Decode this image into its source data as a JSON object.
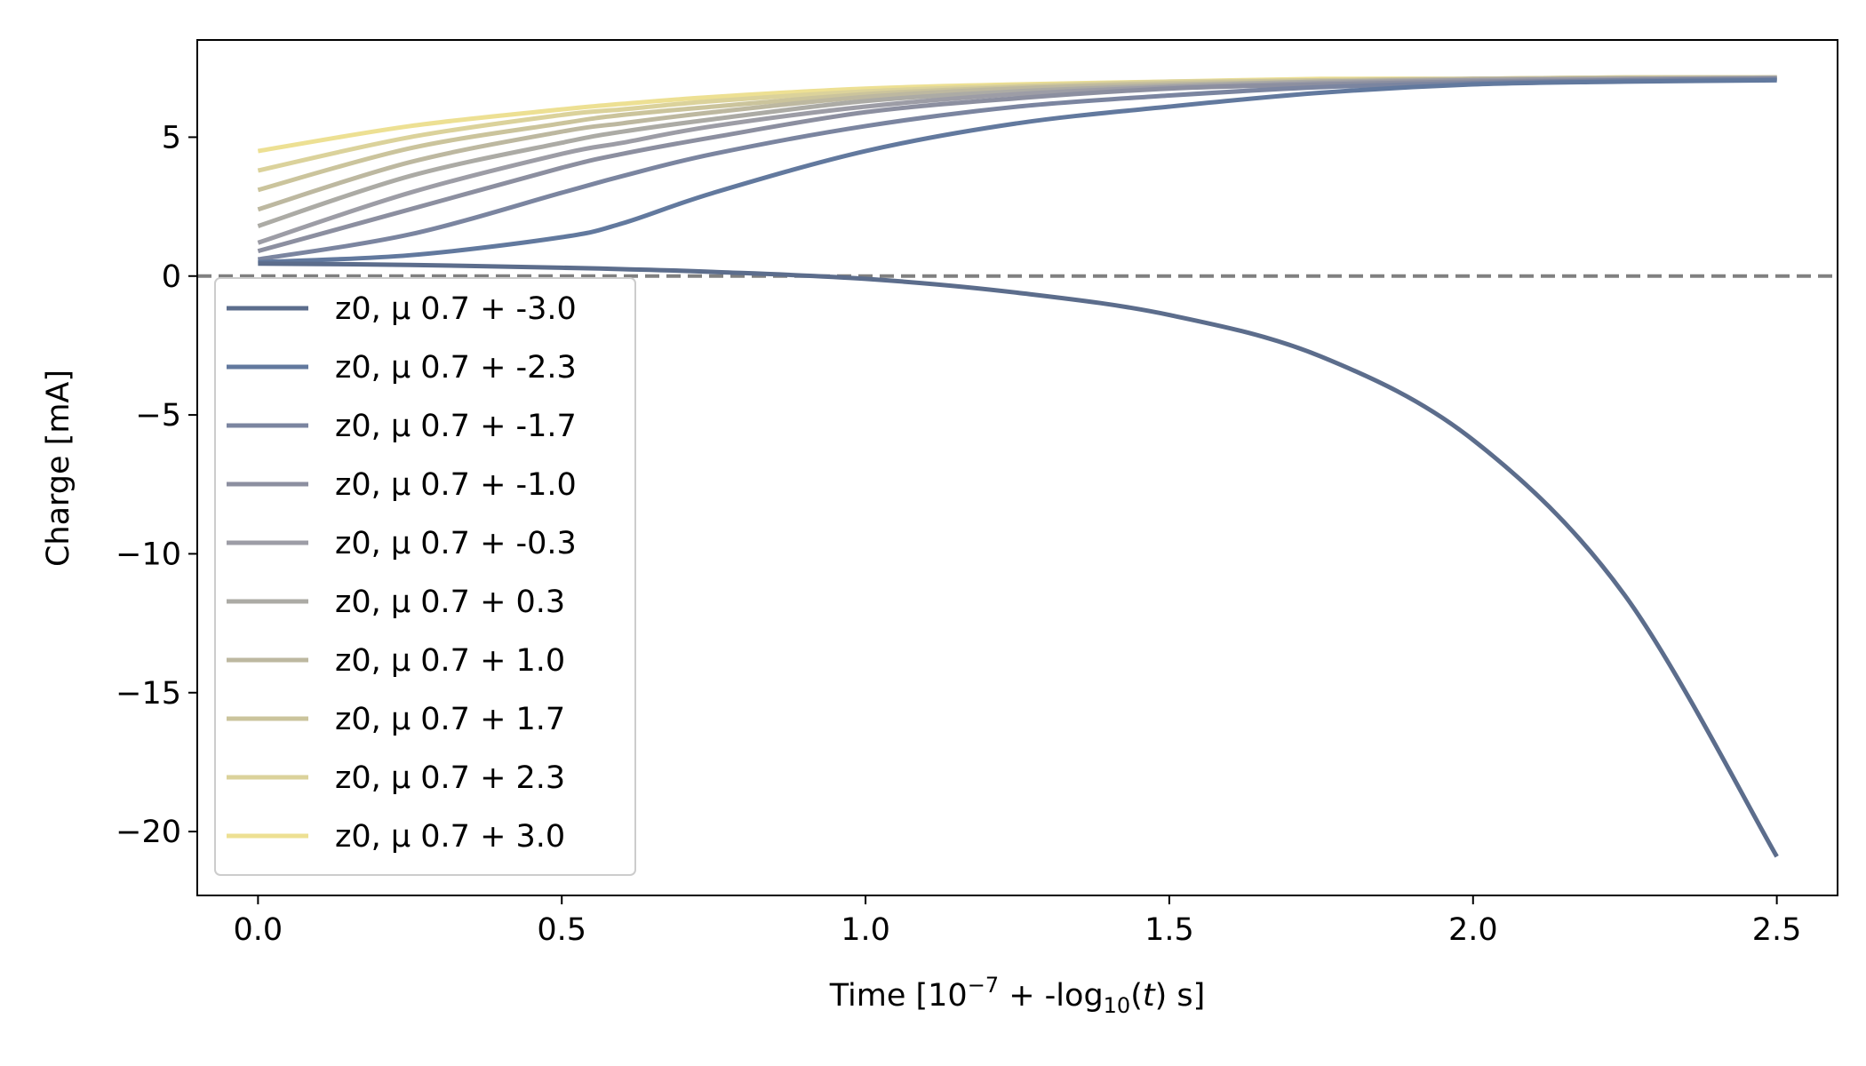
{
  "chart_data": {
    "type": "line",
    "xlabel": {
      "prefix": "Time [10",
      "exp": "−7",
      "mid": " + -log",
      "sub": "10",
      "paren_open": "(",
      "var": "t",
      "paren_close": ") s]"
    },
    "ylabel": "Charge [mA]",
    "xlim": [
      -0.1,
      2.6
    ],
    "ylim": [
      -22.3,
      8.5
    ],
    "xticks": [
      0.0,
      0.5,
      1.0,
      1.5,
      2.0,
      2.5
    ],
    "xtick_labels": [
      "0.0",
      "0.5",
      "1.0",
      "1.5",
      "2.0",
      "2.5"
    ],
    "yticks": [
      5,
      0,
      -5,
      -10,
      -15,
      -20
    ],
    "ytick_labels": [
      "5",
      "0",
      "−5",
      "−10",
      "−15",
      "−20"
    ],
    "grid": false,
    "legend_placement": "upper-left",
    "reference_line": {
      "y": 0,
      "style": "dashed",
      "color": "#808080"
    },
    "x": [
      0.0,
      0.25,
      0.5,
      0.6,
      0.75,
      1.0,
      1.25,
      1.5,
      1.75,
      2.0,
      2.25,
      2.5
    ],
    "series": [
      {
        "name": "z0, μ 0.7 + -3.0",
        "color": "#5c6d8c",
        "values": [
          0.45,
          0.4,
          0.3,
          0.25,
          0.15,
          -0.1,
          -0.6,
          -1.4,
          -2.9,
          -5.9,
          -11.5,
          -20.9
        ]
      },
      {
        "name": "z0, μ 0.7 + -2.3",
        "color": "#62799e",
        "values": [
          0.5,
          0.75,
          1.4,
          1.9,
          3.0,
          4.5,
          5.5,
          6.1,
          6.6,
          6.9,
          7.0,
          7.05
        ]
      },
      {
        "name": "z0, μ 0.7 + -1.7",
        "color": "#7b85a0",
        "values": [
          0.6,
          1.5,
          3.0,
          3.6,
          4.4,
          5.4,
          6.1,
          6.5,
          6.8,
          6.95,
          7.05,
          7.1
        ]
      },
      {
        "name": "z0, μ 0.7 + -1.0",
        "color": "#8c8fa0",
        "values": [
          0.9,
          2.4,
          3.9,
          4.4,
          5.0,
          5.9,
          6.4,
          6.75,
          6.9,
          7.0,
          7.05,
          7.1
        ]
      },
      {
        "name": "z0, μ 0.7 + -0.3",
        "color": "#9d9da6",
        "values": [
          1.2,
          3.0,
          4.4,
          4.8,
          5.4,
          6.1,
          6.55,
          6.8,
          6.95,
          7.05,
          7.1,
          7.1
        ]
      },
      {
        "name": "z0, μ 0.7 + 0.3",
        "color": "#acaba5",
        "values": [
          1.8,
          3.6,
          4.8,
          5.2,
          5.65,
          6.3,
          6.65,
          6.85,
          7.0,
          7.05,
          7.1,
          7.15
        ]
      },
      {
        "name": "z0, μ 0.7 + 1.0",
        "color": "#bdb8a0",
        "values": [
          2.4,
          4.1,
          5.2,
          5.5,
          5.9,
          6.45,
          6.75,
          6.9,
          7.0,
          7.1,
          7.1,
          7.15
        ]
      },
      {
        "name": "z0, μ 0.7 + 1.7",
        "color": "#cbc49c",
        "values": [
          3.1,
          4.6,
          5.5,
          5.8,
          6.1,
          6.55,
          6.8,
          6.95,
          7.05,
          7.1,
          7.15,
          7.15
        ]
      },
      {
        "name": "z0, μ 0.7 + 2.3",
        "color": "#dbd29b",
        "values": [
          3.8,
          5.0,
          5.8,
          6.0,
          6.3,
          6.65,
          6.85,
          7.0,
          7.05,
          7.1,
          7.15,
          7.15
        ]
      },
      {
        "name": "z0, μ 0.7 + 3.0",
        "color": "#ede093",
        "values": [
          4.5,
          5.4,
          6.0,
          6.2,
          6.45,
          6.75,
          6.9,
          7.0,
          7.1,
          7.1,
          7.15,
          7.15
        ]
      }
    ]
  }
}
